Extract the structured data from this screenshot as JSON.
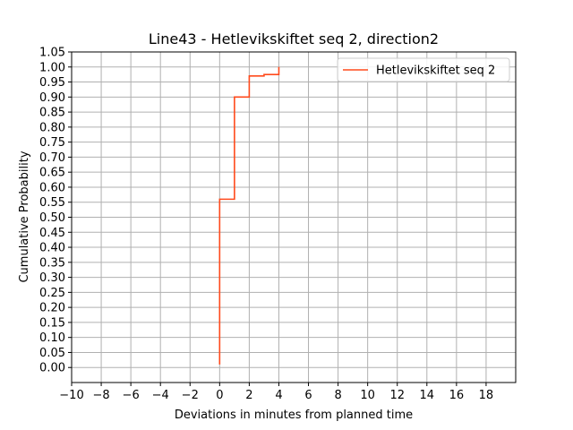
{
  "chart_data": {
    "type": "line",
    "title": "Line43 - Hetlevikskiftet seq 2, direction2",
    "xlabel": "Deviations in minutes from planned time",
    "ylabel": "Cumulative Probability",
    "xlim": [
      -10,
      20
    ],
    "ylim": [
      -0.05,
      1.05
    ],
    "xticks": [
      -10,
      -8,
      -6,
      -4,
      -2,
      0,
      2,
      4,
      6,
      8,
      10,
      12,
      14,
      16,
      18
    ],
    "xtick_labels": [
      "−10",
      "−8",
      "−6",
      "−4",
      "−2",
      "0",
      "2",
      "4",
      "6",
      "8",
      "10",
      "12",
      "14",
      "16",
      "18"
    ],
    "yticks": [
      0.0,
      0.05,
      0.1,
      0.15,
      0.2,
      0.25,
      0.3,
      0.35,
      0.4,
      0.45,
      0.5,
      0.55,
      0.6,
      0.65,
      0.7,
      0.75,
      0.8,
      0.85,
      0.9,
      0.95,
      1.0,
      1.05
    ],
    "ytick_labels": [
      "0.00",
      "0.05",
      "0.10",
      "0.15",
      "0.20",
      "0.25",
      "0.30",
      "0.35",
      "0.40",
      "0.45",
      "0.50",
      "0.55",
      "0.60",
      "0.65",
      "0.70",
      "0.75",
      "0.80",
      "0.85",
      "0.90",
      "0.95",
      "1.00",
      "1.05"
    ],
    "grid": true,
    "legend_position": "top-right",
    "series": [
      {
        "name": "Hetlevikskiftet seq 2",
        "color": "#ff4a1c",
        "step": "post",
        "x": [
          0,
          0,
          1,
          1,
          2,
          2,
          3,
          3,
          4,
          4
        ],
        "y": [
          0.01,
          0.56,
          0.56,
          0.9,
          0.9,
          0.97,
          0.97,
          0.975,
          0.975,
          1.0
        ]
      }
    ]
  }
}
